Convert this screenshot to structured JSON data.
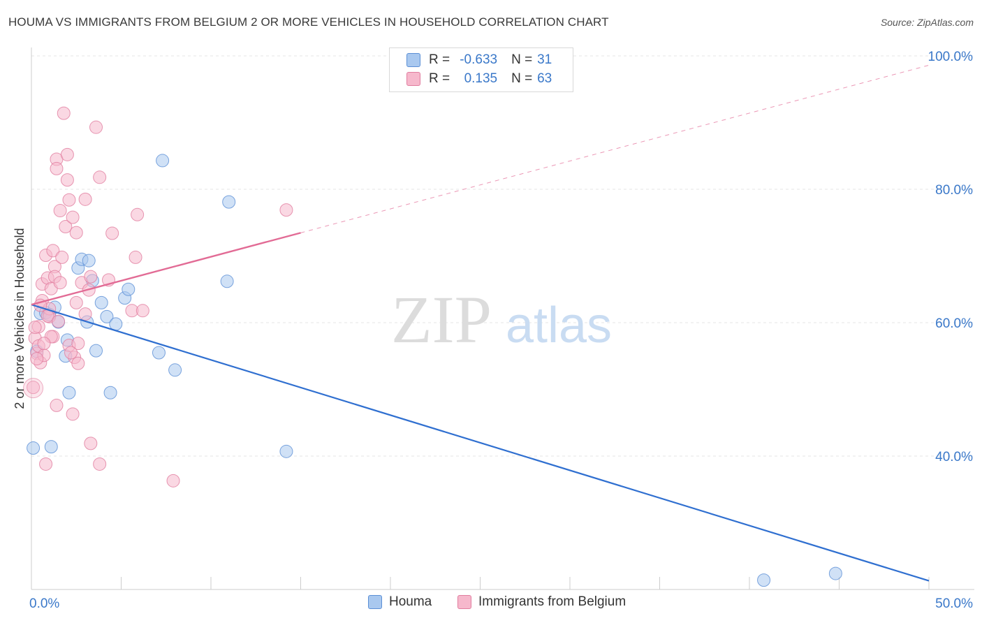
{
  "title": "HOUMA VS IMMIGRANTS FROM BELGIUM 2 OR MORE VEHICLES IN HOUSEHOLD CORRELATION CHART",
  "source": "Source: ZipAtlas.com",
  "watermark": {
    "zip": "ZIP",
    "atlas": "atlas"
  },
  "legend": {
    "rows": [
      {
        "r_label": "R = ",
        "r_value": "-0.633",
        "n_label": "N = ",
        "n_value": "31",
        "color": "#a9c8ef",
        "stroke": "#5b8fd6"
      },
      {
        "r_label": "R = ",
        "r_value": "0.135",
        "n_label": "N = ",
        "n_value": "63",
        "color": "#f6b8cc",
        "stroke": "#e17d9f"
      }
    ]
  },
  "chart_data": {
    "type": "scatter",
    "title": "HOUMA VS IMMIGRANTS FROM BELGIUM 2 OR MORE VEHICLES IN HOUSEHOLD CORRELATION CHART",
    "xlabel": "",
    "ylabel": "2 or more Vehicles in Household",
    "xlim": [
      0,
      50
    ],
    "ylim": [
      20,
      100
    ],
    "x_tick_labels": [
      {
        "value": 0,
        "label": "0.0%"
      },
      {
        "value": 50,
        "label": "50.0%"
      }
    ],
    "y_tick_labels": [
      {
        "value": 40,
        "label": "40.0%"
      },
      {
        "value": 60,
        "label": "60.0%"
      },
      {
        "value": 80,
        "label": "80.0%"
      },
      {
        "value": 100,
        "label": "100.0%"
      }
    ],
    "grid": true,
    "legend_position": "top-center",
    "series": [
      {
        "name": "Houma",
        "color": "#a9c8ef",
        "stroke": "#5b8fd6",
        "line_color": "#2f6fd0",
        "trend": {
          "x0": 0,
          "y0": 62.7,
          "x1": 50,
          "y1": 21.3,
          "dashed_from": null
        },
        "points": [
          [
            0.1,
            41.2
          ],
          [
            1.1,
            41.4
          ],
          [
            0.5,
            61.4
          ],
          [
            0.8,
            61.5
          ],
          [
            1.3,
            62.3
          ],
          [
            1.5,
            60.1
          ],
          [
            1.9,
            55.0
          ],
          [
            2.0,
            57.4
          ],
          [
            2.1,
            49.5
          ],
          [
            2.6,
            68.2
          ],
          [
            2.8,
            69.5
          ],
          [
            3.2,
            69.3
          ],
          [
            3.4,
            66.3
          ],
          [
            3.6,
            55.8
          ],
          [
            3.9,
            63.0
          ],
          [
            4.2,
            60.9
          ],
          [
            4.4,
            49.5
          ],
          [
            4.7,
            59.8
          ],
          [
            5.2,
            63.7
          ],
          [
            5.4,
            65.0
          ],
          [
            7.1,
            55.5
          ],
          [
            7.3,
            84.3
          ],
          [
            8.0,
            52.9
          ],
          [
            10.9,
            66.2
          ],
          [
            11.0,
            78.1
          ],
          [
            14.2,
            40.7
          ],
          [
            40.8,
            21.4
          ],
          [
            44.8,
            22.4
          ],
          [
            0.3,
            55.7
          ],
          [
            1.0,
            61.2
          ],
          [
            3.1,
            60.1
          ]
        ]
      },
      {
        "name": "Immigrants from Belgium",
        "color": "#f6b8cc",
        "stroke": "#e17d9f",
        "line_color": "#e26b95",
        "trend": {
          "x0": 0,
          "y0": 62.7,
          "x1": 50,
          "y1": 98.6,
          "solid_until": 15.0
        },
        "points": [
          [
            0.1,
            50.3
          ],
          [
            0.2,
            57.7
          ],
          [
            0.3,
            55.4
          ],
          [
            0.4,
            59.4
          ],
          [
            0.4,
            56.5
          ],
          [
            0.5,
            54.0
          ],
          [
            0.6,
            63.3
          ],
          [
            0.6,
            65.8
          ],
          [
            0.7,
            55.1
          ],
          [
            0.8,
            38.8
          ],
          [
            0.8,
            70.1
          ],
          [
            0.9,
            66.7
          ],
          [
            1.0,
            60.9
          ],
          [
            1.0,
            62.1
          ],
          [
            1.1,
            65.1
          ],
          [
            1.2,
            57.9
          ],
          [
            1.2,
            70.8
          ],
          [
            1.3,
            68.4
          ],
          [
            1.3,
            66.9
          ],
          [
            1.4,
            47.6
          ],
          [
            1.4,
            84.5
          ],
          [
            1.4,
            83.1
          ],
          [
            1.6,
            76.8
          ],
          [
            1.6,
            66.0
          ],
          [
            1.7,
            69.8
          ],
          [
            1.8,
            91.4
          ],
          [
            1.9,
            74.4
          ],
          [
            2.0,
            85.2
          ],
          [
            2.0,
            81.4
          ],
          [
            2.1,
            78.4
          ],
          [
            2.1,
            56.6
          ],
          [
            2.3,
            46.3
          ],
          [
            2.3,
            75.8
          ],
          [
            2.4,
            54.8
          ],
          [
            2.5,
            73.5
          ],
          [
            2.5,
            63.0
          ],
          [
            2.6,
            56.9
          ],
          [
            2.6,
            53.9
          ],
          [
            2.8,
            66.0
          ],
          [
            3.0,
            61.3
          ],
          [
            3.0,
            78.5
          ],
          [
            3.2,
            64.9
          ],
          [
            3.3,
            66.9
          ],
          [
            3.3,
            41.9
          ],
          [
            3.6,
            89.3
          ],
          [
            3.8,
            38.8
          ],
          [
            3.8,
            81.8
          ],
          [
            4.3,
            66.4
          ],
          [
            4.5,
            73.4
          ],
          [
            5.6,
            61.8
          ],
          [
            5.8,
            69.8
          ],
          [
            5.9,
            76.2
          ],
          [
            6.2,
            61.8
          ],
          [
            7.9,
            36.3
          ],
          [
            14.2,
            76.9
          ],
          [
            0.3,
            54.6
          ],
          [
            0.5,
            62.6
          ],
          [
            0.9,
            61.0
          ],
          [
            1.1,
            57.9
          ],
          [
            1.5,
            60.2
          ],
          [
            2.2,
            55.5
          ],
          [
            0.2,
            59.3
          ],
          [
            0.7,
            56.9
          ]
        ]
      }
    ]
  },
  "bottom_legend": [
    {
      "label": "Houma",
      "color": "#a9c8ef",
      "stroke": "#5b8fd6"
    },
    {
      "label": "Immigrants from Belgium",
      "color": "#f6b8cc",
      "stroke": "#e17d9f"
    }
  ]
}
